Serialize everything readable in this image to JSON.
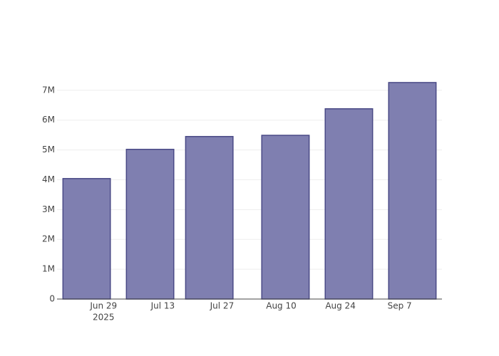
{
  "chart_data": {
    "type": "bar",
    "x": [
      "2025-06-25",
      "2025-07-10",
      "2025-07-24",
      "2025-08-11",
      "2025-08-26",
      "2025-09-10"
    ],
    "values": [
      4040000,
      5020000,
      5450000,
      5490000,
      6380000,
      7260000
    ],
    "color": "#7f7fb0",
    "xlim": [
      "2025-06-18",
      "2025-09-17"
    ],
    "xticks": [
      {
        "value": "2025-06-29",
        "label": "Jun 29"
      },
      {
        "value": "2025-07-13",
        "label": "Jul 13"
      },
      {
        "value": "2025-07-27",
        "label": "Jul 27"
      },
      {
        "value": "2025-08-10",
        "label": "Aug 10"
      },
      {
        "value": "2025-08-24",
        "label": "Aug 24"
      },
      {
        "value": "2025-09-07",
        "label": "Sep 7"
      }
    ],
    "x_year": "2025",
    "ylim": [
      0,
      7640000
    ],
    "yticks": [
      0,
      {
        "value": 1000000,
        "label": "1M"
      },
      {
        "value": 2000000,
        "label": "2M"
      },
      {
        "value": 3000000,
        "label": "3M"
      },
      {
        "value": 4000000,
        "label": "4M"
      },
      {
        "value": 5000000,
        "label": "5M"
      },
      {
        "value": 6000000,
        "label": "6M"
      },
      {
        "value": 7000000,
        "label": "7M"
      }
    ],
    "grid": true
  }
}
